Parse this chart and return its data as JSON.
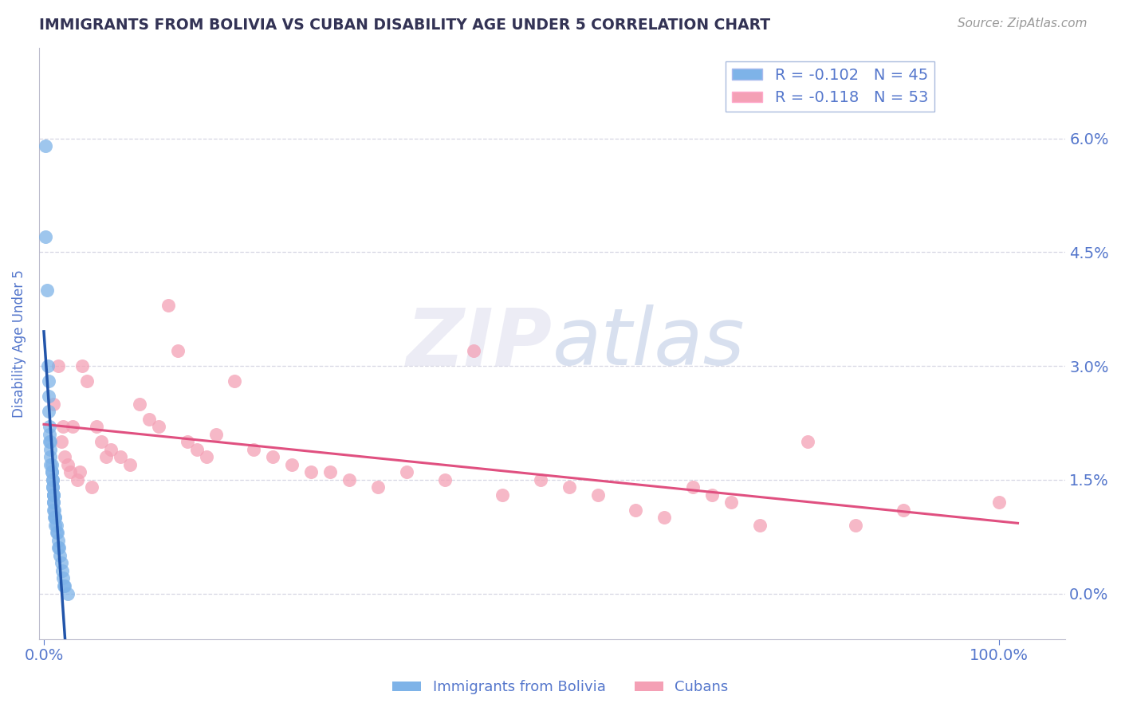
{
  "title": "IMMIGRANTS FROM BOLIVIA VS CUBAN DISABILITY AGE UNDER 5 CORRELATION CHART",
  "source": "Source: ZipAtlas.com",
  "ylabel": "Disability Age Under 5",
  "legend_label1": "Immigrants from Bolivia",
  "legend_label2": "Cubans",
  "R1": -0.102,
  "N1": 45,
  "R2": -0.118,
  "N2": 53,
  "color1": "#7EB3E8",
  "color2": "#F4A0B5",
  "color1_line": "#2255AA",
  "color2_line": "#E05080",
  "axis_color": "#5577CC",
  "title_color": "#333355",
  "bolivia_x": [
    0.002,
    0.002,
    0.003,
    0.004,
    0.005,
    0.005,
    0.005,
    0.006,
    0.006,
    0.006,
    0.007,
    0.007,
    0.007,
    0.007,
    0.008,
    0.008,
    0.008,
    0.009,
    0.009,
    0.009,
    0.009,
    0.01,
    0.01,
    0.01,
    0.01,
    0.01,
    0.01,
    0.011,
    0.011,
    0.012,
    0.012,
    0.012,
    0.013,
    0.013,
    0.014,
    0.015,
    0.015,
    0.016,
    0.017,
    0.018,
    0.019,
    0.02,
    0.021,
    0.022,
    0.025
  ],
  "bolivia_y": [
    0.059,
    0.047,
    0.04,
    0.03,
    0.028,
    0.026,
    0.024,
    0.022,
    0.021,
    0.02,
    0.02,
    0.019,
    0.018,
    0.017,
    0.017,
    0.016,
    0.016,
    0.015,
    0.015,
    0.014,
    0.014,
    0.013,
    0.013,
    0.013,
    0.012,
    0.012,
    0.011,
    0.011,
    0.01,
    0.01,
    0.01,
    0.009,
    0.009,
    0.008,
    0.008,
    0.007,
    0.006,
    0.006,
    0.005,
    0.004,
    0.003,
    0.002,
    0.001,
    0.001,
    0.0
  ],
  "cuban_x": [
    0.01,
    0.015,
    0.018,
    0.02,
    0.022,
    0.025,
    0.028,
    0.03,
    0.035,
    0.038,
    0.04,
    0.045,
    0.05,
    0.055,
    0.06,
    0.065,
    0.07,
    0.08,
    0.09,
    0.1,
    0.11,
    0.12,
    0.13,
    0.14,
    0.15,
    0.16,
    0.17,
    0.18,
    0.2,
    0.22,
    0.24,
    0.26,
    0.28,
    0.3,
    0.32,
    0.35,
    0.38,
    0.42,
    0.45,
    0.48,
    0.52,
    0.55,
    0.58,
    0.62,
    0.65,
    0.68,
    0.7,
    0.72,
    0.75,
    0.8,
    0.85,
    0.9,
    1.0
  ],
  "cuban_y": [
    0.025,
    0.03,
    0.02,
    0.022,
    0.018,
    0.017,
    0.016,
    0.022,
    0.015,
    0.016,
    0.03,
    0.028,
    0.014,
    0.022,
    0.02,
    0.018,
    0.019,
    0.018,
    0.017,
    0.025,
    0.023,
    0.022,
    0.038,
    0.032,
    0.02,
    0.019,
    0.018,
    0.021,
    0.028,
    0.019,
    0.018,
    0.017,
    0.016,
    0.016,
    0.015,
    0.014,
    0.016,
    0.015,
    0.032,
    0.013,
    0.015,
    0.014,
    0.013,
    0.011,
    0.01,
    0.014,
    0.013,
    0.012,
    0.009,
    0.02,
    0.009,
    0.011,
    0.012
  ],
  "ytick_vals": [
    0.0,
    0.015,
    0.03,
    0.045,
    0.06
  ],
  "ytick_labels": [
    "0.0%",
    "1.5%",
    "3.0%",
    "4.5%",
    "6.0%"
  ],
  "xtick_vals": [
    0.0,
    1.0
  ],
  "xtick_labels": [
    "0.0%",
    "100.0%"
  ],
  "xlim": [
    -0.005,
    1.07
  ],
  "ylim": [
    -0.006,
    0.072
  ]
}
